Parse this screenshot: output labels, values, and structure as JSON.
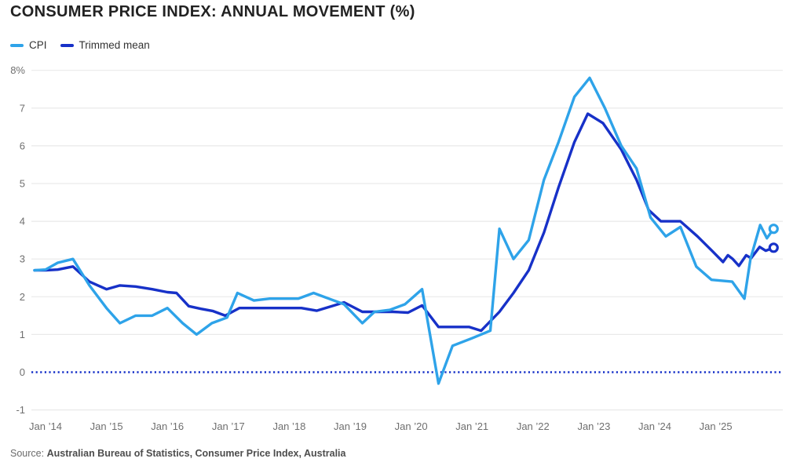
{
  "title": "CONSUMER PRICE INDEX: ANNUAL MOVEMENT (%)",
  "legend": [
    {
      "label": "CPI",
      "color": "#2EA3E9"
    },
    {
      "label": "Trimmed mean",
      "color": "#1731C8"
    }
  ],
  "source": {
    "prefix": "Source:",
    "text": "Australian Bureau of Statistics, Consumer Price Index, Australia"
  },
  "colors": {
    "grid": "#E9E9E9",
    "axis_label": "#6F6F6F",
    "background": "#FFFFFF"
  },
  "chart_data": {
    "type": "line",
    "title": "Consumer Price Index: annual movement (%)",
    "xlabel": "",
    "ylabel": "Annual movement (%)",
    "grid": true,
    "legend_position": "top-left",
    "x_axis": {
      "range": [
        2013.8,
        2026.05
      ],
      "ticks": [
        {
          "value": 2014,
          "label": "Jan ’14"
        },
        {
          "value": 2015,
          "label": "Jan ’15"
        },
        {
          "value": 2016,
          "label": "Jan ’16"
        },
        {
          "value": 2017,
          "label": "Jan ’17"
        },
        {
          "value": 2018,
          "label": "Jan ’18"
        },
        {
          "value": 2019,
          "label": "Jan ’19"
        },
        {
          "value": 2020,
          "label": "Jan ’20"
        },
        {
          "value": 2021,
          "label": "Jan ’21"
        },
        {
          "value": 2022,
          "label": "Jan ’22"
        },
        {
          "value": 2023,
          "label": "Jan ’23"
        },
        {
          "value": 2024,
          "label": "Jan ’24"
        },
        {
          "value": 2025,
          "label": "Jan ’25"
        }
      ]
    },
    "y_axis": {
      "range": [
        -1,
        8
      ],
      "zero_line_at": 0,
      "zero_line_style": "dotted",
      "zero_line_color": "#1731C8",
      "ticks": [
        {
          "value": 8,
          "label": "8%"
        },
        {
          "value": 7,
          "label": "7"
        },
        {
          "value": 6,
          "label": "6"
        },
        {
          "value": 5,
          "label": "5"
        },
        {
          "value": 4,
          "label": "4"
        },
        {
          "value": 3,
          "label": "3"
        },
        {
          "value": 2,
          "label": "2"
        },
        {
          "value": 1,
          "label": "1"
        },
        {
          "value": 0,
          "label": "0"
        },
        {
          "value": -1,
          "label": "-1"
        }
      ]
    },
    "series": [
      {
        "name": "CPI",
        "color": "#2EA3E9",
        "end_marker": true,
        "points": [
          [
            2013.82,
            2.7
          ],
          [
            2014.0,
            2.72
          ],
          [
            2014.2,
            2.9
          ],
          [
            2014.45,
            3.0
          ],
          [
            2014.72,
            2.3
          ],
          [
            2015.0,
            1.7
          ],
          [
            2015.22,
            1.3
          ],
          [
            2015.48,
            1.5
          ],
          [
            2015.75,
            1.5
          ],
          [
            2016.0,
            1.7
          ],
          [
            2016.25,
            1.3
          ],
          [
            2016.48,
            1.0
          ],
          [
            2016.73,
            1.3
          ],
          [
            2016.98,
            1.45
          ],
          [
            2017.15,
            2.1
          ],
          [
            2017.42,
            1.9
          ],
          [
            2017.68,
            1.95
          ],
          [
            2017.93,
            1.95
          ],
          [
            2018.15,
            1.95
          ],
          [
            2018.4,
            2.1
          ],
          [
            2018.65,
            1.95
          ],
          [
            2018.9,
            1.8
          ],
          [
            2019.2,
            1.3
          ],
          [
            2019.4,
            1.6
          ],
          [
            2019.65,
            1.65
          ],
          [
            2019.9,
            1.8
          ],
          [
            2020.18,
            2.2
          ],
          [
            2020.45,
            -0.3
          ],
          [
            2020.68,
            0.7
          ],
          [
            2021.0,
            0.9
          ],
          [
            2021.3,
            1.1
          ],
          [
            2021.45,
            3.8
          ],
          [
            2021.68,
            3.0
          ],
          [
            2021.93,
            3.5
          ],
          [
            2022.18,
            5.1
          ],
          [
            2022.42,
            6.1
          ],
          [
            2022.68,
            7.3
          ],
          [
            2022.93,
            7.8
          ],
          [
            2023.18,
            7.0
          ],
          [
            2023.45,
            6.0
          ],
          [
            2023.7,
            5.4
          ],
          [
            2023.93,
            4.1
          ],
          [
            2024.18,
            3.6
          ],
          [
            2024.42,
            3.85
          ],
          [
            2024.68,
            2.8
          ],
          [
            2024.93,
            2.45
          ],
          [
            2025.27,
            2.4
          ],
          [
            2025.36,
            2.2
          ],
          [
            2025.47,
            1.95
          ],
          [
            2025.57,
            3.0
          ],
          [
            2025.73,
            3.9
          ],
          [
            2025.84,
            3.55
          ],
          [
            2025.95,
            3.8
          ]
        ]
      },
      {
        "name": "Trimmed mean",
        "color": "#1731C8",
        "end_marker": true,
        "points": [
          [
            2013.82,
            2.7
          ],
          [
            2014.0,
            2.7
          ],
          [
            2014.2,
            2.72
          ],
          [
            2014.45,
            2.8
          ],
          [
            2014.72,
            2.4
          ],
          [
            2015.0,
            2.2
          ],
          [
            2015.22,
            2.3
          ],
          [
            2015.48,
            2.27
          ],
          [
            2015.75,
            2.2
          ],
          [
            2016.0,
            2.12
          ],
          [
            2016.15,
            2.1
          ],
          [
            2016.35,
            1.75
          ],
          [
            2016.55,
            1.68
          ],
          [
            2016.75,
            1.62
          ],
          [
            2016.95,
            1.5
          ],
          [
            2017.18,
            1.7
          ],
          [
            2017.45,
            1.7
          ],
          [
            2017.7,
            1.7
          ],
          [
            2017.95,
            1.7
          ],
          [
            2018.2,
            1.7
          ],
          [
            2018.45,
            1.63
          ],
          [
            2018.7,
            1.75
          ],
          [
            2018.9,
            1.85
          ],
          [
            2019.2,
            1.6
          ],
          [
            2019.45,
            1.6
          ],
          [
            2019.7,
            1.6
          ],
          [
            2019.95,
            1.58
          ],
          [
            2020.18,
            1.77
          ],
          [
            2020.45,
            1.2
          ],
          [
            2020.7,
            1.2
          ],
          [
            2020.95,
            1.2
          ],
          [
            2021.15,
            1.1
          ],
          [
            2021.45,
            1.6
          ],
          [
            2021.68,
            2.1
          ],
          [
            2021.93,
            2.7
          ],
          [
            2022.18,
            3.7
          ],
          [
            2022.42,
            4.9
          ],
          [
            2022.68,
            6.1
          ],
          [
            2022.9,
            6.85
          ],
          [
            2023.15,
            6.6
          ],
          [
            2023.45,
            5.9
          ],
          [
            2023.7,
            5.1
          ],
          [
            2023.9,
            4.3
          ],
          [
            2024.1,
            4.0
          ],
          [
            2024.42,
            4.0
          ],
          [
            2024.7,
            3.6
          ],
          [
            2024.95,
            3.2
          ],
          [
            2025.12,
            2.92
          ],
          [
            2025.2,
            3.1
          ],
          [
            2025.28,
            3.0
          ],
          [
            2025.38,
            2.82
          ],
          [
            2025.5,
            3.1
          ],
          [
            2025.58,
            3.02
          ],
          [
            2025.72,
            3.32
          ],
          [
            2025.82,
            3.22
          ],
          [
            2025.95,
            3.3
          ]
        ]
      }
    ]
  }
}
